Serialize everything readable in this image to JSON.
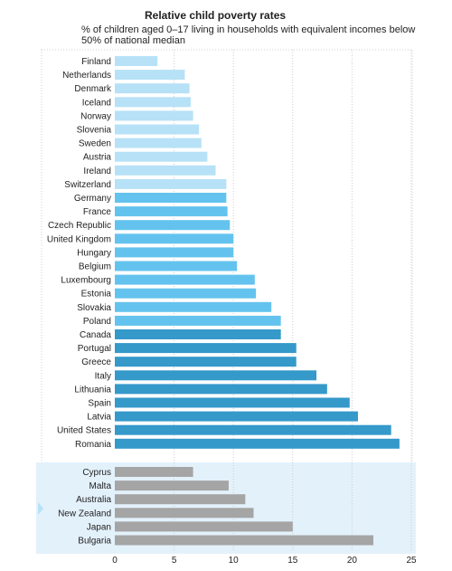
{
  "chart_data": {
    "type": "bar",
    "orientation": "horizontal",
    "title": "Relative child poverty rates",
    "subtitle": "% of children aged 0–17 living in households with equivalent incomes below 50% of national median",
    "xlim": [
      0,
      25
    ],
    "xticks": [
      "0",
      "5",
      "10",
      "15",
      "20",
      "25"
    ],
    "grid": "vertical dashed",
    "groups": [
      {
        "categories": [
          "Finland",
          "Netherlands",
          "Denmark",
          "Iceland",
          "Norway",
          "Slovenia",
          "Sweden",
          "Austria",
          "Ireland",
          "Switzerland",
          "Germany",
          "France",
          "Czech Republic",
          "United Kingdom",
          "Hungary",
          "Belgium",
          "Luxembourg",
          "Estonia",
          "Slovakia",
          "Poland",
          "Canada",
          "Portugal",
          "Greece",
          "Italy",
          "Lithuania",
          "Spain",
          "Latvia",
          "United States",
          "Romania"
        ],
        "values": [
          3.6,
          5.9,
          6.3,
          6.4,
          6.6,
          7.1,
          7.3,
          7.8,
          8.5,
          9.4,
          9.4,
          9.5,
          9.7,
          10.0,
          10.0,
          10.3,
          11.8,
          11.9,
          13.2,
          14.0,
          14.0,
          15.3,
          15.3,
          17.0,
          17.9,
          19.8,
          20.5,
          23.3,
          24.0
        ],
        "colors": [
          "#b7e1f6",
          "#b7e1f6",
          "#b7e1f6",
          "#b7e1f6",
          "#b7e1f6",
          "#b7e1f6",
          "#b7e1f6",
          "#b7e1f6",
          "#b7e1f6",
          "#b7e1f6",
          "#64c3ee",
          "#64c3ee",
          "#64c3ee",
          "#64c3ee",
          "#64c3ee",
          "#64c3ee",
          "#64c3ee",
          "#64c3ee",
          "#64c3ee",
          "#64c3ee",
          "#3599ca",
          "#3599ca",
          "#3599ca",
          "#3599ca",
          "#3599ca",
          "#3599ca",
          "#3599ca",
          "#3599ca",
          "#3599ca"
        ]
      },
      {
        "categories": [
          "Cyprus",
          "Malta",
          "Australia",
          "New Zealand",
          "Japan",
          "Bulgaria"
        ],
        "values": [
          6.6,
          9.6,
          11.0,
          11.7,
          15.0,
          21.8
        ],
        "colors": [
          "#a5a5a5",
          "#a5a5a5",
          "#a5a5a5",
          "#a5a5a5",
          "#a5a5a5",
          "#a5a5a5"
        ]
      }
    ],
    "colors": {
      "band_light": "#b7e1f6",
      "band_medium": "#64c3ee",
      "band_dark": "#3599ca",
      "non_eu_oecd": "#a5a5a5",
      "highlight_panel": "#e3f1fb",
      "grid": "#cccccc"
    }
  }
}
